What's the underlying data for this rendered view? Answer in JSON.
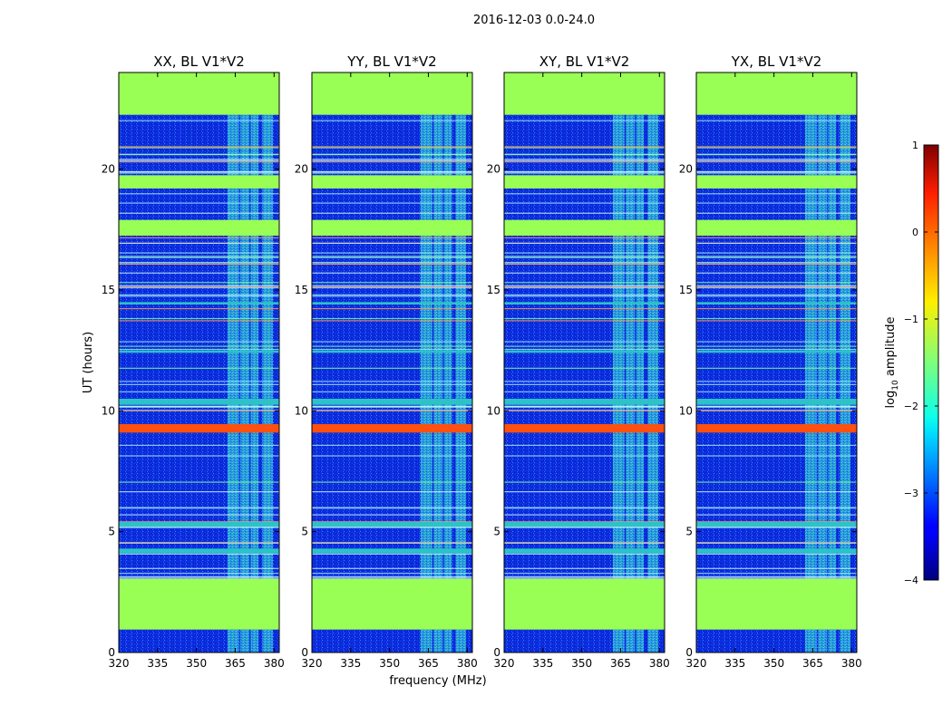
{
  "chart_data": {
    "type": "heatmap",
    "title": "2016-12-03 0.0-24.0",
    "xlabel": "frequency (MHz)",
    "ylabel": "UT (hours)",
    "xlim": [
      320,
      382
    ],
    "ylim": [
      0,
      24
    ],
    "xticks": [
      "320",
      "335",
      "350",
      "365",
      "380"
    ],
    "yticks": [
      "0",
      "5",
      "10",
      "15",
      "20"
    ],
    "panels": [
      {
        "title": "XX, BL V1*V2",
        "key": "xx"
      },
      {
        "title": "YY, BL V1*V2",
        "key": "yy"
      },
      {
        "title": "XY, BL V1*V2",
        "key": "xy"
      },
      {
        "title": "YX, BL V1*V2",
        "key": "yx"
      }
    ],
    "colorbar": {
      "label": "log",
      "label_sub": "10",
      "label_rest": " amplitude",
      "range": [
        -4,
        1
      ],
      "ticks": [
        "1",
        "0",
        "−1",
        "−2",
        "−3",
        "−4"
      ]
    },
    "flagged_hours": [
      [
        0.95,
        3.05
      ],
      [
        17.25,
        17.9
      ],
      [
        19.2,
        19.75
      ],
      [
        22.25,
        24.0
      ]
    ],
    "strong_rfi_hours": [
      [
        9.1,
        9.45
      ]
    ],
    "moderate_rfi_hours": [
      [
        10.25,
        10.5
      ],
      [
        14.4,
        14.5
      ],
      [
        4.1,
        4.3
      ],
      [
        5.2,
        5.4
      ],
      [
        12.4,
        12.5
      ]
    ],
    "rfi_band_mhz": [
      [
        362,
        366.5
      ],
      [
        367,
        370.5
      ],
      [
        371,
        374
      ],
      [
        375.5,
        379.5
      ]
    ],
    "colors": {
      "flagged": "#99ff55",
      "background": "#0b2ce0",
      "strong_rfi": "#ff5010",
      "moderate_rfi": "#2cc2c8",
      "band": "#3ad6b6"
    }
  }
}
